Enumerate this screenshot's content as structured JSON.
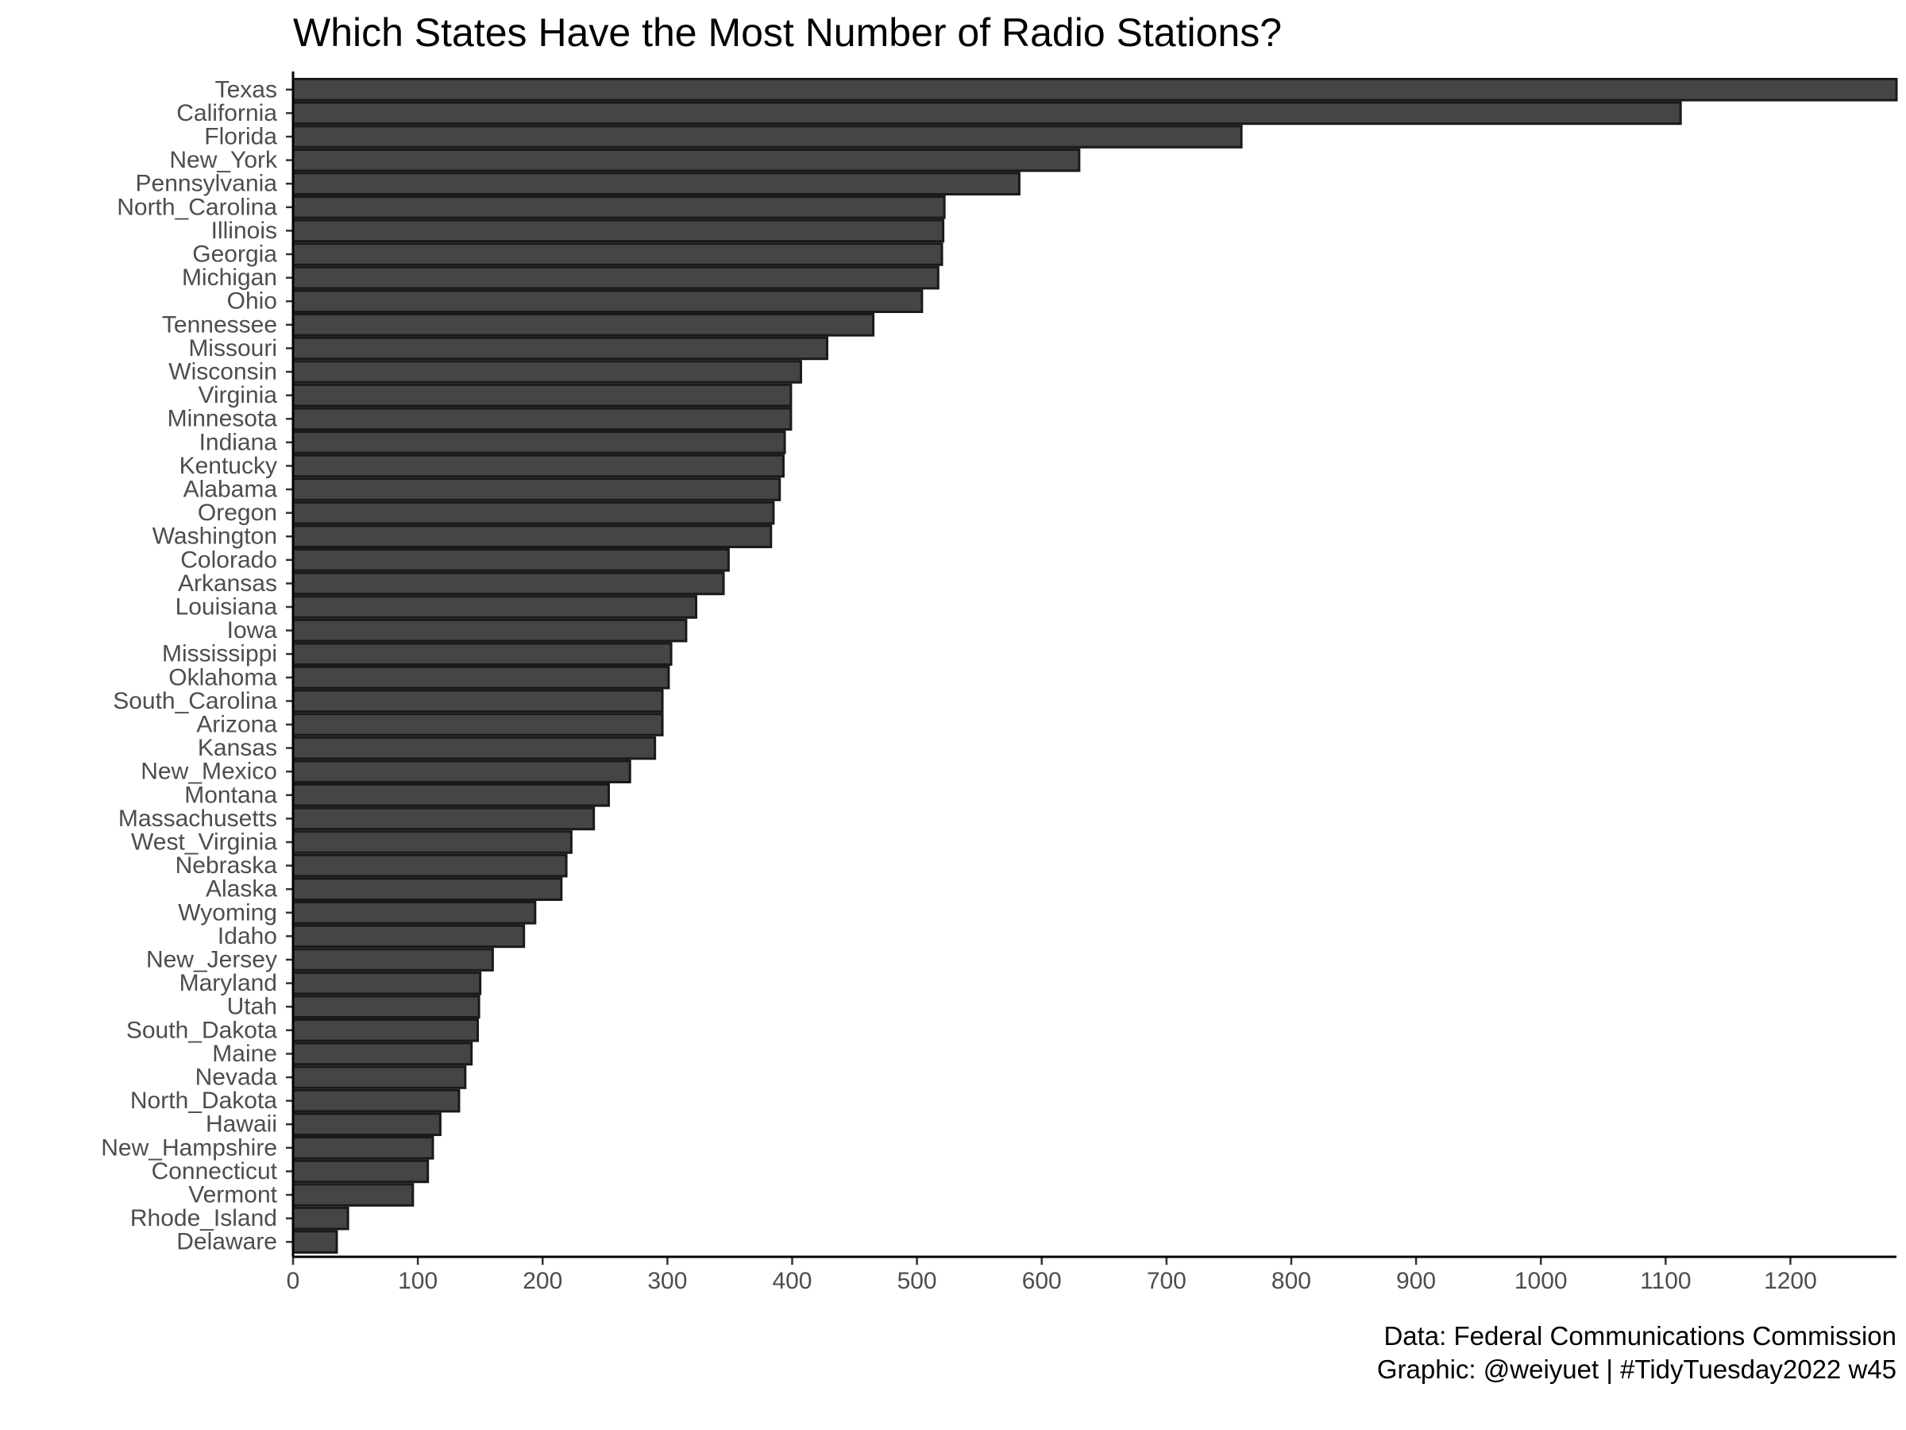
{
  "chart_data": {
    "type": "bar",
    "orientation": "horizontal",
    "title": "Which States Have the Most Number of Radio Stations?",
    "xlabel": "",
    "ylabel": "",
    "xlim": [
      0,
      1285
    ],
    "x_ticks": [
      0,
      100,
      200,
      300,
      400,
      500,
      600,
      700,
      800,
      900,
      1000,
      1100,
      1200
    ],
    "grid": false,
    "bar_fill": "#454545",
    "bar_stroke": "#1a1a1a",
    "categories": [
      "Texas",
      "California",
      "Florida",
      "New_York",
      "Pennsylvania",
      "North_Carolina",
      "Illinois",
      "Georgia",
      "Michigan",
      "Ohio",
      "Tennessee",
      "Missouri",
      "Wisconsin",
      "Virginia",
      "Minnesota",
      "Indiana",
      "Kentucky",
      "Alabama",
      "Oregon",
      "Washington",
      "Colorado",
      "Arkansas",
      "Louisiana",
      "Iowa",
      "Mississippi",
      "Oklahoma",
      "South_Carolina",
      "Arizona",
      "Kansas",
      "New_Mexico",
      "Montana",
      "Massachusetts",
      "West_Virginia",
      "Nebraska",
      "Alaska",
      "Wyoming",
      "Idaho",
      "New_Jersey",
      "Maryland",
      "Utah",
      "South_Dakota",
      "Maine",
      "Nevada",
      "North_Dakota",
      "Hawaii",
      "New_Hampshire",
      "Connecticut",
      "Vermont",
      "Rhode_Island",
      "Delaware"
    ],
    "values": [
      1285,
      1112,
      760,
      630,
      582,
      522,
      521,
      520,
      517,
      504,
      465,
      428,
      407,
      399,
      399,
      394,
      393,
      390,
      385,
      383,
      349,
      345,
      323,
      315,
      303,
      301,
      296,
      296,
      290,
      270,
      253,
      241,
      223,
      219,
      215,
      194,
      185,
      160,
      150,
      149,
      148,
      143,
      138,
      133,
      118,
      112,
      108,
      96,
      44,
      35
    ],
    "caption": [
      "Data: Federal Communications Commission",
      "Graphic: @weiyuet | #TidyTuesday2022 w45"
    ]
  }
}
